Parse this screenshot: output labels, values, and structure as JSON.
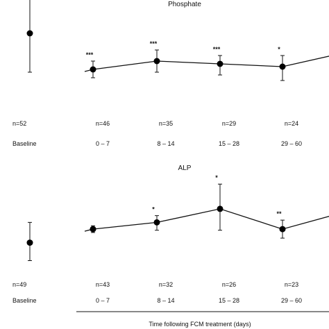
{
  "chart_data": [
    {
      "type": "line",
      "title": "Phosphate",
      "baseline": {
        "label": "Baseline",
        "n": "n=52",
        "mean": 0.88,
        "lower": 0.74,
        "upper": 1.02
      },
      "categories": [
        "0 – 7",
        "8 – 14",
        "15 – 28",
        "29 – 60",
        ""
      ],
      "n_labels": [
        "n=46",
        "n=35",
        "n=29",
        "n=24",
        ""
      ],
      "significance": [
        "***",
        "***",
        "***",
        "*",
        ""
      ],
      "means": [
        0.75,
        0.78,
        0.77,
        0.76,
        0.8
      ],
      "lower": [
        0.72,
        0.74,
        0.73,
        0.71,
        null
      ],
      "upper": [
        0.78,
        0.82,
        0.8,
        0.8,
        null
      ]
    },
    {
      "type": "line",
      "title": "ALP",
      "baseline": {
        "label": "Baseline",
        "n": "n=49",
        "mean": 0.7,
        "lower": 0.62,
        "upper": 0.79
      },
      "categories": [
        "0 – 7",
        "8 – 14",
        "15 – 28",
        "29 – 60",
        ""
      ],
      "n_labels": [
        "n=43",
        "n=32",
        "n=26",
        "n=23",
        ""
      ],
      "significance": [
        "",
        "*",
        "*",
        "**",
        ""
      ],
      "means": [
        0.76,
        0.79,
        0.85,
        0.76,
        0.82
      ],
      "lower": [
        0.745,
        0.755,
        0.755,
        0.72,
        null
      ],
      "upper": [
        0.775,
        0.82,
        0.96,
        0.8,
        null
      ]
    }
  ],
  "xlabel": "Time following FCM treatment (days)"
}
